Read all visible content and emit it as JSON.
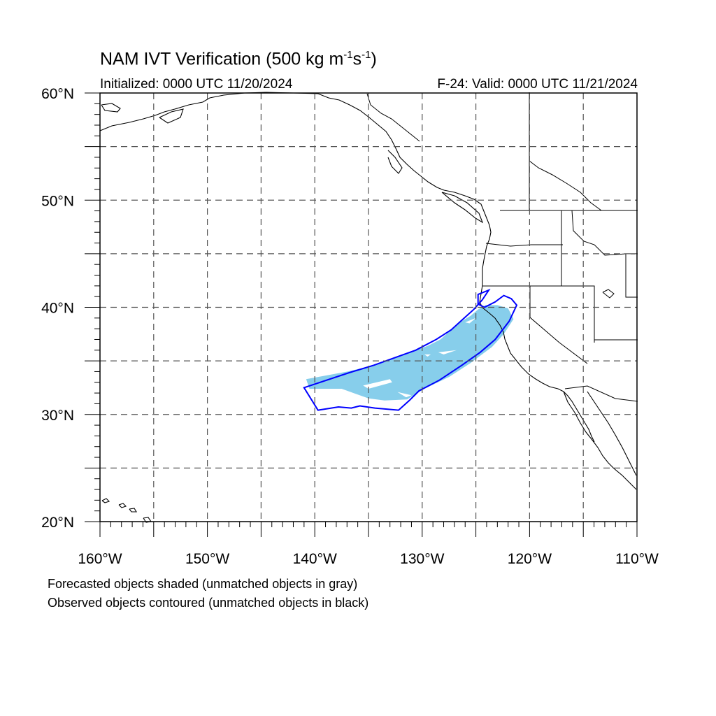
{
  "title": {
    "main": "NAM IVT Verification (500 kg m",
    "exp1": "-1",
    "mid": "s",
    "exp2": "-1",
    "close": ")"
  },
  "initialized": "Initialized: 0000 UTC 11/20/2024",
  "valid": "F-24: Valid: 0000 UTC 11/21/2024",
  "map": {
    "lon_range": [
      -160,
      -110
    ],
    "lat_range": [
      20,
      60
    ],
    "grid_step_deg": 5,
    "lat_labels": [
      {
        "lat": 60,
        "text": "60°N"
      },
      {
        "lat": 50,
        "text": "50°N"
      },
      {
        "lat": 40,
        "text": "40°N"
      },
      {
        "lat": 30,
        "text": "30°N"
      },
      {
        "lat": 20,
        "text": "20°N"
      }
    ],
    "lon_labels": [
      {
        "lon": -160,
        "text": "160°W"
      },
      {
        "lon": -150,
        "text": "150°W"
      },
      {
        "lon": -140,
        "text": "140°W"
      },
      {
        "lon": -130,
        "text": "130°W"
      },
      {
        "lon": -120,
        "text": "120°W"
      },
      {
        "lon": -110,
        "text": "110°W"
      }
    ],
    "forecast_color": "#87ceeb",
    "observed_color": "#0000ff",
    "forecast_object": [
      [
        -140.8,
        33.3
      ],
      [
        -137.0,
        34.0
      ],
      [
        -134.5,
        34.6
      ],
      [
        -131.5,
        35.7
      ],
      [
        -129.5,
        36.4
      ],
      [
        -128.3,
        37.0
      ],
      [
        -127.3,
        37.9
      ],
      [
        -126.5,
        38.6
      ],
      [
        -125.5,
        39.2
      ],
      [
        -124.8,
        39.8
      ],
      [
        -124.1,
        40.2
      ],
      [
        -123.0,
        40.2
      ],
      [
        -122.0,
        39.9
      ],
      [
        -121.5,
        38.9
      ],
      [
        -122.4,
        37.5
      ],
      [
        -123.5,
        36.3
      ],
      [
        -125.5,
        34.8
      ],
      [
        -127.5,
        33.5
      ],
      [
        -129.8,
        32.4
      ],
      [
        -131.4,
        31.4
      ],
      [
        -133.5,
        31.3
      ],
      [
        -135.0,
        31.5
      ],
      [
        -137.5,
        32.4
      ],
      [
        -140.5,
        32.4
      ]
    ],
    "observed_object": [
      [
        -141.0,
        32.5
      ],
      [
        -136.8,
        33.9
      ],
      [
        -134.5,
        34.6
      ],
      [
        -130.6,
        36.0
      ],
      [
        -128.7,
        37.0
      ],
      [
        -127.3,
        37.9
      ],
      [
        -126.2,
        38.9
      ],
      [
        -125.2,
        39.8
      ],
      [
        -124.4,
        40.7
      ],
      [
        -123.8,
        41.6
      ],
      [
        -124.8,
        41.2
      ],
      [
        -124.8,
        40.3
      ],
      [
        -124.2,
        40.0
      ],
      [
        -123.2,
        40.5
      ],
      [
        -122.4,
        41.1
      ],
      [
        -121.7,
        40.8
      ],
      [
        -121.2,
        40.2
      ],
      [
        -121.9,
        38.7
      ],
      [
        -123.2,
        37.0
      ],
      [
        -124.6,
        35.8
      ],
      [
        -126.3,
        34.6
      ],
      [
        -128.4,
        33.2
      ],
      [
        -130.3,
        32.2
      ],
      [
        -131.2,
        31.3
      ],
      [
        -132.2,
        30.4
      ],
      [
        -134.4,
        30.6
      ],
      [
        -135.8,
        30.8
      ],
      [
        -136.6,
        30.6
      ],
      [
        -137.8,
        30.7
      ],
      [
        -139.7,
        30.4
      ]
    ],
    "forecast_holes": [
      [
        [
          -135.5,
          32.7
        ],
        [
          -133.0,
          33.3
        ],
        [
          -132.8,
          33.0
        ],
        [
          -135.0,
          32.4
        ]
      ],
      [
        [
          -132.3,
          32.1
        ],
        [
          -131.0,
          31.8
        ],
        [
          -131.5,
          31.6
        ]
      ],
      [
        [
          -128.5,
          35.8
        ],
        [
          -126.8,
          36.0
        ],
        [
          -128.0,
          35.6
        ]
      ],
      [
        [
          -129.8,
          35.6
        ],
        [
          -129.2,
          35.6
        ],
        [
          -129.5,
          35.4
        ]
      ],
      [
        [
          -126.0,
          38.6
        ],
        [
          -125.0,
          39.0
        ],
        [
          -125.6,
          38.5
        ]
      ]
    ]
  },
  "notes": [
    "Forecasted objects shaded (unmatched objects in gray)",
    "Observed objects contoured (unmatched objects in black)"
  ]
}
